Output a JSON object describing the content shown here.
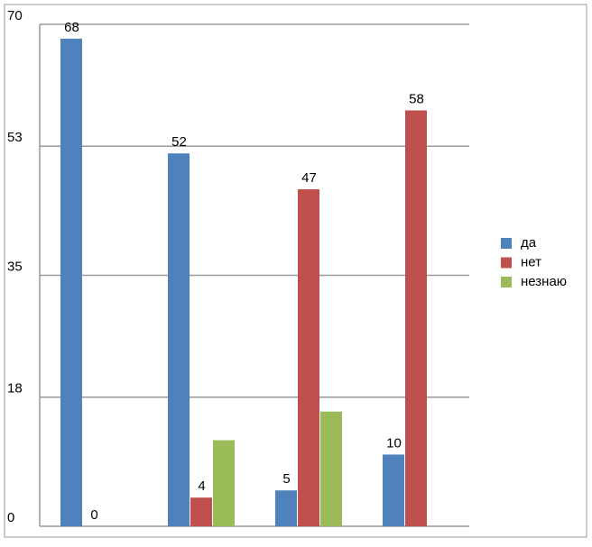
{
  "chart_data": {
    "type": "bar",
    "categories": [
      null,
      null,
      null,
      null
    ],
    "series": [
      {
        "name": "да",
        "color": "#4f81bd",
        "values": [
          68,
          52,
          5,
          10
        ],
        "data_labels": true
      },
      {
        "name": "нет",
        "color": "#c0504d",
        "values": [
          0,
          4,
          47,
          58
        ],
        "data_labels": true
      },
      {
        "name": "незнаю",
        "color": "#9bbb59",
        "values": [
          null,
          12,
          16,
          null
        ],
        "data_labels": false
      }
    ],
    "ylim": [
      0,
      70
    ],
    "yticks": [
      0,
      18,
      35,
      53,
      70
    ],
    "grid": true,
    "legend": "right"
  }
}
